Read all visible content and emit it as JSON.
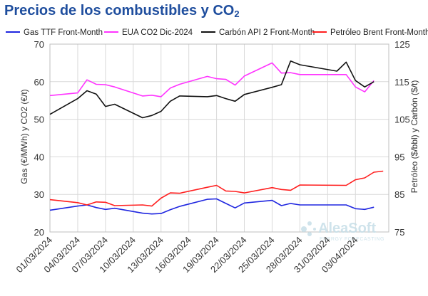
{
  "title": {
    "main": "Precios de los combustibles y CO",
    "subscript": "2"
  },
  "colors": {
    "title": "#1f4e9e",
    "gas": "#1f26e0",
    "co2": "#ff33ff",
    "coal": "#111111",
    "brent": "#ff1f1f",
    "grid": "#d9d9d9",
    "axis_text": "#333333",
    "watermark": "#8fb8cc"
  },
  "watermark": {
    "brand": "AleaSoft",
    "tagline": "ENERGY FORECASTING",
    "icon": "aleasoft-logo-icon"
  },
  "chart_data": {
    "type": "line",
    "title": "Precios de los combustibles y CO2",
    "legend_position": "top",
    "grid": true,
    "y_left": {
      "label": "Gas (€/MWh) y CO2 (€/t)",
      "ylim": [
        20,
        70
      ],
      "ticks": [
        "20",
        "30",
        "40",
        "50",
        "60",
        "70"
      ]
    },
    "y_right": {
      "label": "Petróleo ($/bbl) y Carbón ($/t)",
      "ylim": [
        75,
        125
      ],
      "ticks": [
        "75",
        "85",
        "95",
        "105",
        "115",
        "125"
      ]
    },
    "x_tick_labels": [
      "01/03/2024",
      "04/03/2024",
      "07/03/2024",
      "10/03/2024",
      "13/03/2024",
      "16/03/2024",
      "19/03/2024",
      "22/03/2024",
      "25/03/2024",
      "28/03/2024",
      "31/03/2024",
      "03/04/2024"
    ],
    "series": [
      {
        "name": "Gas TTF Front-Month",
        "axis": "left",
        "color": "#1f26e0",
        "points": [
          [
            "2024-03-01",
            25.8
          ],
          [
            "2024-03-04",
            26.9
          ],
          [
            "2024-03-05",
            27.2
          ],
          [
            "2024-03-06",
            26.5
          ],
          [
            "2024-03-07",
            26.0
          ],
          [
            "2024-03-08",
            26.3
          ],
          [
            "2024-03-11",
            25.0
          ],
          [
            "2024-03-12",
            24.8
          ],
          [
            "2024-03-13",
            24.9
          ],
          [
            "2024-03-14",
            25.9
          ],
          [
            "2024-03-15",
            26.8
          ],
          [
            "2024-03-18",
            28.7
          ],
          [
            "2024-03-19",
            28.8
          ],
          [
            "2024-03-20",
            27.6
          ],
          [
            "2024-03-21",
            26.4
          ],
          [
            "2024-03-22",
            27.7
          ],
          [
            "2024-03-25",
            28.4
          ],
          [
            "2024-03-26",
            27.0
          ],
          [
            "2024-03-27",
            27.6
          ],
          [
            "2024-03-28",
            27.2
          ],
          [
            "2024-04-02",
            27.2
          ],
          [
            "2024-04-03",
            26.2
          ],
          [
            "2024-04-04",
            26.0
          ],
          [
            "2024-04-05",
            26.6
          ]
        ]
      },
      {
        "name": "EUA CO2 Dic-2024",
        "axis": "left",
        "color": "#ff33ff",
        "points": [
          [
            "2024-03-01",
            56.3
          ],
          [
            "2024-03-04",
            57.0
          ],
          [
            "2024-03-05",
            60.5
          ],
          [
            "2024-03-06",
            59.3
          ],
          [
            "2024-03-07",
            59.2
          ],
          [
            "2024-03-08",
            58.6
          ],
          [
            "2024-03-11",
            56.2
          ],
          [
            "2024-03-12",
            56.4
          ],
          [
            "2024-03-13",
            56.0
          ],
          [
            "2024-03-14",
            58.3
          ],
          [
            "2024-03-15",
            59.3
          ],
          [
            "2024-03-18",
            61.4
          ],
          [
            "2024-03-19",
            60.8
          ],
          [
            "2024-03-20",
            60.6
          ],
          [
            "2024-03-21",
            59.1
          ],
          [
            "2024-03-22",
            61.5
          ],
          [
            "2024-03-25",
            65.0
          ],
          [
            "2024-03-26",
            62.3
          ],
          [
            "2024-03-27",
            62.4
          ],
          [
            "2024-03-28",
            61.9
          ],
          [
            "2024-04-02",
            61.9
          ],
          [
            "2024-04-03",
            58.6
          ],
          [
            "2024-04-04",
            57.3
          ],
          [
            "2024-04-05",
            60.3
          ]
        ]
      },
      {
        "name": "Carbón API 2 Front-Month",
        "axis": "right",
        "color": "#111111",
        "points": [
          [
            "2024-03-01",
            106.3
          ],
          [
            "2024-03-04",
            110.5
          ],
          [
            "2024-03-05",
            112.6
          ],
          [
            "2024-03-06",
            111.7
          ],
          [
            "2024-03-07",
            108.4
          ],
          [
            "2024-03-08",
            109.0
          ],
          [
            "2024-03-11",
            105.4
          ],
          [
            "2024-03-12",
            106.0
          ],
          [
            "2024-03-13",
            107.1
          ],
          [
            "2024-03-14",
            109.8
          ],
          [
            "2024-03-15",
            111.2
          ],
          [
            "2024-03-18",
            111.0
          ],
          [
            "2024-03-19",
            111.3
          ],
          [
            "2024-03-20",
            110.5
          ],
          [
            "2024-03-21",
            109.8
          ],
          [
            "2024-03-22",
            111.6
          ],
          [
            "2024-03-25",
            113.5
          ],
          [
            "2024-03-26",
            114.2
          ],
          [
            "2024-03-27",
            120.5
          ],
          [
            "2024-03-28",
            119.5
          ],
          [
            "2024-04-01",
            117.8
          ],
          [
            "2024-04-02",
            120.2
          ],
          [
            "2024-04-03",
            115.3
          ],
          [
            "2024-04-04",
            113.6
          ],
          [
            "2024-04-05",
            115.0
          ]
        ]
      },
      {
        "name": "Petróleo Brent Front-Month",
        "axis": "right",
        "color": "#ff1f1f",
        "points": [
          [
            "2024-03-01",
            83.6
          ],
          [
            "2024-03-04",
            82.8
          ],
          [
            "2024-03-05",
            82.2
          ],
          [
            "2024-03-06",
            83.0
          ],
          [
            "2024-03-07",
            82.9
          ],
          [
            "2024-03-08",
            82.0
          ],
          [
            "2024-03-11",
            82.2
          ],
          [
            "2024-03-12",
            81.9
          ],
          [
            "2024-03-13",
            84.0
          ],
          [
            "2024-03-14",
            85.4
          ],
          [
            "2024-03-15",
            85.3
          ],
          [
            "2024-03-18",
            86.9
          ],
          [
            "2024-03-19",
            87.4
          ],
          [
            "2024-03-20",
            85.9
          ],
          [
            "2024-03-21",
            85.8
          ],
          [
            "2024-03-22",
            85.4
          ],
          [
            "2024-03-25",
            86.8
          ],
          [
            "2024-03-26",
            86.3
          ],
          [
            "2024-03-27",
            86.1
          ],
          [
            "2024-03-28",
            87.5
          ],
          [
            "2024-04-02",
            87.4
          ],
          [
            "2024-04-03",
            88.9
          ],
          [
            "2024-04-04",
            89.4
          ],
          [
            "2024-04-05",
            90.9
          ],
          [
            "2024-04-06",
            91.2
          ]
        ]
      }
    ]
  }
}
